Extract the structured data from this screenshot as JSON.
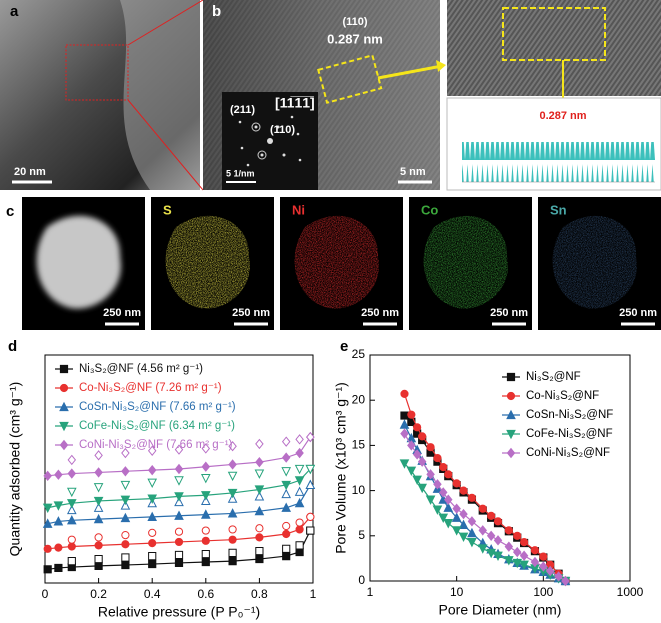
{
  "panels": {
    "a": {
      "label": "a",
      "scale": "20 nm"
    },
    "b": {
      "label": "b",
      "plane": "(110)",
      "spacing": "0.287 nm",
      "scale": "5 nm",
      "saed": {
        "scale": "5 1/nm",
        "spots": [
          "(211)",
          "(110)"
        ],
        "zone_axis": "[11̅1̅1̅]"
      }
    },
    "b_zoom": {
      "profile_label": "0.287 nm"
    },
    "c": {
      "label": "c",
      "maps": [
        {
          "scale": "250 nm"
        },
        {
          "element": "S",
          "scale": "250 nm"
        },
        {
          "element": "Ni",
          "scale": "250 nm"
        },
        {
          "element": "Co",
          "scale": "250 nm"
        },
        {
          "element": "Sn",
          "scale": "250 nm"
        }
      ]
    },
    "d": {
      "label": "d"
    },
    "e": {
      "label": "e"
    }
  },
  "chart_data": [
    {
      "type": "line",
      "xlabel": "Relative pressure (P P₀⁻¹)",
      "ylabel": "Quantity adsorbed (cm³ g⁻¹)",
      "x": [
        0.01,
        0.05,
        0.1,
        0.2,
        0.3,
        0.4,
        0.5,
        0.6,
        0.7,
        0.8,
        0.9,
        0.95,
        0.99
      ],
      "xlim": [
        0,
        1
      ],
      "xticks": [
        0,
        0.2,
        0.4,
        0.6,
        0.8,
        1
      ],
      "ylim": [
        0,
        100
      ],
      "legend": "top left",
      "colored_legend_text": true,
      "series": [
        {
          "name": "Ni₃S₂@NF (4.56 m² g⁻¹)",
          "color": "#111111",
          "marker": "square",
          "values": [
            6,
            6.6,
            7,
            7.5,
            7.9,
            8.3,
            8.8,
            9.2,
            9.6,
            10.5,
            11.8,
            13.6,
            23
          ],
          "desorption": [
            null,
            null,
            9.6,
            10.5,
            11.2,
            11.8,
            12.3,
            12.7,
            13.2,
            14,
            15,
            16.5,
            23
          ]
        },
        {
          "name": "Co-Ni₃S₂@NF (7.26 m² g⁻¹)",
          "color": "#e8312f",
          "marker": "circle",
          "values": [
            15,
            15.5,
            16,
            16.5,
            17,
            17.5,
            18,
            18.5,
            19,
            20,
            21.5,
            23.5,
            29
          ],
          "desorption": [
            null,
            null,
            19,
            20,
            21,
            22,
            22.5,
            23,
            23.5,
            24,
            25,
            26.5,
            29
          ]
        },
        {
          "name": "CoSn-Ni₃S₂@NF (7.66 m² g⁻¹)",
          "color": "#2a6ead",
          "marker": "triangle-up",
          "values": [
            26,
            27,
            27.5,
            28,
            28.5,
            29,
            29.5,
            30,
            30.5,
            31.5,
            33,
            35,
            43
          ],
          "desorption": [
            null,
            null,
            32,
            33,
            34,
            35,
            35.5,
            36,
            37,
            38,
            39,
            40,
            43
          ]
        },
        {
          "name": "CoFe-Ni₃S₂@NF (6.34 m² g⁻¹)",
          "color": "#27a37c",
          "marker": "triangle-down",
          "values": [
            33,
            34,
            35,
            36,
            36.5,
            37,
            38,
            38.5,
            39.5,
            41,
            43,
            45,
            50
          ],
          "desorption": [
            null,
            null,
            40,
            42,
            43,
            44,
            45,
            46,
            47,
            48,
            49,
            50,
            50
          ]
        },
        {
          "name": "CoNi-Ni₃S₂@NF (7.66 m² g⁻¹)",
          "color": "#b86fc6",
          "marker": "diamond",
          "values": [
            47,
            47.5,
            48,
            48.5,
            49,
            49.5,
            50,
            51,
            52,
            53,
            55,
            57,
            64
          ],
          "desorption": [
            null,
            null,
            54,
            56,
            57,
            58,
            58.5,
            59,
            60,
            61,
            62,
            63,
            64
          ]
        }
      ]
    },
    {
      "type": "line",
      "xlabel": "Pore Diameter (nm)",
      "ylabel": "Pore Volume (x10³ cm³ g⁻¹)",
      "log_x": true,
      "x": [
        2.5,
        3,
        3.5,
        4,
        5,
        6,
        7,
        8,
        10,
        12,
        15,
        20,
        25,
        30,
        40,
        50,
        60,
        80,
        100,
        120,
        150,
        180
      ],
      "xlim": [
        1,
        1000
      ],
      "xticks": [
        1,
        10,
        100,
        1000
      ],
      "ylim": [
        0,
        25
      ],
      "yticks": [
        0,
        5,
        10,
        15,
        20,
        25
      ],
      "legend": "top right",
      "colored_legend_text": false,
      "series": [
        {
          "name": "Ni₃S₂@NF",
          "color": "#111111",
          "marker": "square",
          "values": [
            18.3,
            17.6,
            16.3,
            15.6,
            14.2,
            13.2,
            12.4,
            11.6,
            10.6,
            9.8,
            9,
            7.8,
            7,
            6.4,
            5.5,
            4.8,
            4.2,
            3.3,
            2.6,
            1.8,
            0.8,
            0
          ]
        },
        {
          "name": "Co-Ni₃S₂@NF",
          "color": "#e8312f",
          "marker": "circle",
          "values": [
            20.7,
            18.4,
            17,
            16,
            14.8,
            13.6,
            12.6,
            11.8,
            10.8,
            10,
            9.2,
            8,
            7.2,
            6.6,
            5.6,
            5,
            4.3,
            3.4,
            2.7,
            1.8,
            0.8,
            0
          ]
        },
        {
          "name": "CoSn-Ni₃S₂@NF",
          "color": "#2a6ead",
          "marker": "triangle-up",
          "values": [
            17.3,
            15.8,
            14.5,
            13.3,
            11.6,
            10.2,
            9,
            8.1,
            7,
            6.2,
            5.3,
            4.2,
            3.5,
            3,
            2.4,
            2,
            1.7,
            1.3,
            1,
            0.7,
            0.3,
            0
          ]
        },
        {
          "name": "CoFe-Ni₃S₂@NF",
          "color": "#27a37c",
          "marker": "triangle-down",
          "values": [
            13,
            12.2,
            11.2,
            10.3,
            9,
            7.9,
            7,
            6.4,
            5.6,
            4.9,
            4.3,
            3.6,
            3.1,
            2.8,
            2.3,
            2,
            1.8,
            1.4,
            1.1,
            0.7,
            0.3,
            0
          ]
        },
        {
          "name": "CoNi-Ni₃S₂@NF",
          "color": "#b86fc6",
          "marker": "diamond",
          "values": [
            16.3,
            15,
            14,
            13.2,
            11.8,
            10.7,
            9.8,
            9,
            8,
            7.4,
            6.6,
            5.6,
            5,
            4.5,
            3.8,
            3.2,
            2.8,
            2.1,
            1.6,
            1.1,
            0.5,
            0
          ]
        }
      ]
    }
  ]
}
